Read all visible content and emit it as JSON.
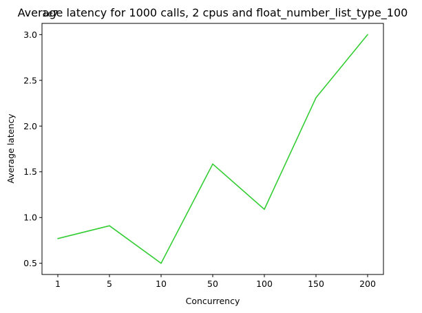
{
  "chart_data": {
    "type": "line",
    "title": "Average latency for 1000 calls, 2 cpus and float_number_list_type_100",
    "xlabel": "Concurrency",
    "ylabel": "Average latency",
    "y_offset_label": "1e7",
    "categories": [
      "1",
      "5",
      "10",
      "50",
      "100",
      "150",
      "200"
    ],
    "series": [
      {
        "color": "#32cd32",
        "values": [
          7700000,
          9100000,
          5000000,
          15850000,
          10900000,
          23100000,
          30000000
        ]
      }
    ],
    "yticks": [
      5000000,
      10000000,
      15000000,
      20000000,
      25000000,
      30000000
    ],
    "ytick_labels": [
      "0.5",
      "1.0",
      "1.5",
      "2.0",
      "2.5",
      "3.0"
    ],
    "ylim": [
      3775000,
      31225000
    ],
    "grid": false,
    "legend": false
  }
}
